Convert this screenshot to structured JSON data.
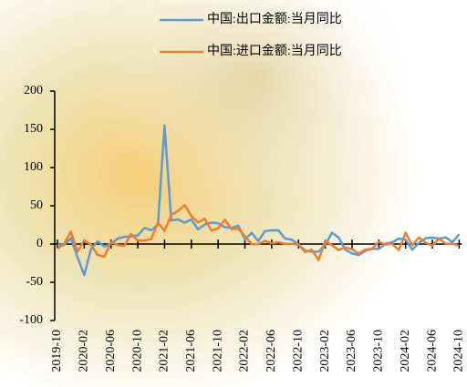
{
  "chart_data": {
    "type": "line",
    "categories": [
      "2019-10",
      null,
      null,
      null,
      "2020-02",
      null,
      null,
      null,
      "2020-06",
      null,
      null,
      null,
      "2020-10",
      null,
      null,
      null,
      "2021-02",
      null,
      null,
      null,
      "2021-06",
      null,
      null,
      null,
      "2021-10",
      null,
      null,
      null,
      "2022-02",
      null,
      null,
      null,
      "2022-06",
      null,
      null,
      null,
      "2022-10",
      null,
      null,
      null,
      "2023-02",
      null,
      null,
      null,
      "2023-06",
      null,
      null,
      null,
      "2023-10",
      null,
      null,
      null,
      "2024-02",
      null,
      null,
      null,
      "2024-06",
      null,
      null,
      null,
      "2024-10"
    ],
    "series": [
      {
        "name": "中国:出口金额:当月同比",
        "color": "#5b9bd5",
        "values": [
          -0.9,
          -1.3,
          7.6,
          -17.2,
          -40.6,
          -6.6,
          3.5,
          -3.3,
          0.5,
          7.2,
          9.5,
          9.9,
          11.4,
          21.1,
          18.1,
          24.9,
          154.9,
          30.6,
          32.3,
          27.9,
          32.2,
          19.3,
          25.6,
          28.1,
          27.1,
          22,
          20.9,
          24.1,
          6.2,
          14.7,
          3.9,
          16.9,
          17.9,
          18,
          7.1,
          5.7,
          -0.3,
          -8.7,
          -9.9,
          -10,
          -1.3,
          14.8,
          8.5,
          -7.5,
          -12.4,
          -14.5,
          -8.8,
          -6.2,
          -6.4,
          0.5,
          2.3,
          7.1,
          5.6,
          -7.5,
          1.5,
          7.6,
          8.6,
          7,
          8.7,
          2.4,
          12.7
        ]
      },
      {
        "name": "中国:进口金额:当月同比",
        "color": "#ed7d31",
        "values": [
          -6.2,
          0.3,
          16.3,
          -10,
          5,
          -0.9,
          -14.2,
          -16.7,
          2.7,
          -1.4,
          -2.1,
          13.2,
          4.7,
          4.5,
          6.5,
          28,
          17.3,
          38.1,
          43.1,
          51.1,
          36.7,
          28.1,
          33.1,
          17.6,
          20.6,
          31.7,
          19.5,
          20,
          10.4,
          -0.1,
          0,
          4.1,
          1,
          2.3,
          0.3,
          0.3,
          -0.7,
          -10.6,
          -7.5,
          -21,
          4.2,
          -1.4,
          -7.9,
          -4.5,
          -6.8,
          -12.4,
          -7.3,
          -6.2,
          3,
          -0.6,
          0.2,
          -8,
          15,
          -1.9,
          8.4,
          1.8,
          -2.3,
          7.2,
          0.5,
          0.3,
          -2.3
        ]
      }
    ],
    "ylim": [
      -100,
      200
    ],
    "yticks": [
      -100,
      -50,
      0,
      50,
      100,
      150,
      200
    ]
  }
}
